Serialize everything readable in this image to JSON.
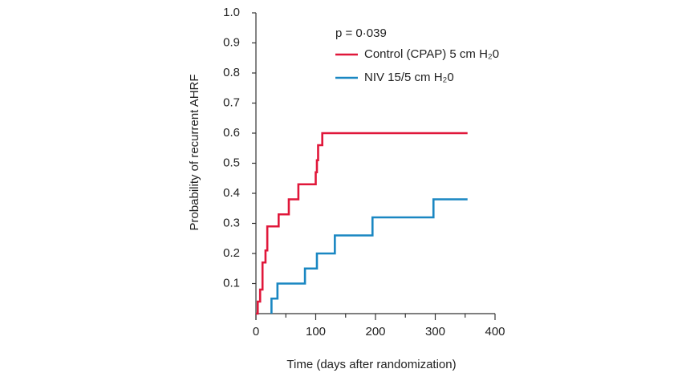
{
  "chart_data": {
    "type": "step",
    "annotation": "p = 0·039",
    "x_label": "Time (days after randomization)",
    "y_label": "Probability of recurrent AHRF",
    "xlim": [
      0,
      400
    ],
    "xticks": [
      0,
      100,
      200,
      300,
      400
    ],
    "ylim": [
      0,
      1
    ],
    "yticks": [
      0.1,
      0.2,
      0.3,
      0.4,
      0.5,
      0.6,
      0.7,
      0.8,
      0.9,
      {
        "value": 1,
        "label": "1.0"
      }
    ],
    "series": [
      {
        "name": "Control (CPAP) 5 cm H₂0",
        "color": "#e0173a",
        "x": [
          0,
          3,
          7,
          11,
          16,
          19,
          38,
          55,
          71,
          100,
          102,
          104,
          111,
          354
        ],
        "values": [
          0,
          0.04,
          0.08,
          0.17,
          0.21,
          0.29,
          0.33,
          0.38,
          0.43,
          0.47,
          0.51,
          0.56,
          0.6,
          0.6
        ]
      },
      {
        "name": "NIV 15/5 cm H₂0",
        "color": "#1a87c2",
        "x": [
          26,
          36,
          82,
          102,
          132,
          195,
          297,
          354
        ],
        "values": [
          0.05,
          0.1,
          0.15,
          0.2,
          0.26,
          0.32,
          0.38,
          0.38
        ]
      }
    ]
  }
}
